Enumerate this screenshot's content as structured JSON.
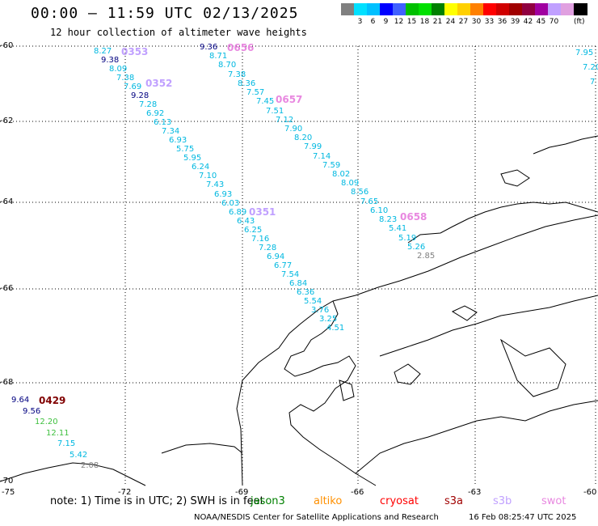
{
  "title": "00:00 – 11:59 UTC 02/13/2025",
  "subtitle": "12 hour collection of altimeter wave heights",
  "legend": {
    "colors": [
      "#808080",
      "#00e0ff",
      "#00c0ff",
      "#0000ff",
      "#4060ff",
      "#00c000",
      "#00e000",
      "#008000",
      "#ffff00",
      "#ffd000",
      "#ff8000",
      "#ff0000",
      "#d00000",
      "#a00000",
      "#900040",
      "#a000a0",
      "#c0a0ff",
      "#e0a0e0",
      "#000000"
    ],
    "labels": [
      "3",
      "6",
      "9",
      "12",
      "15",
      "18",
      "21",
      "24",
      "27",
      "30",
      "33",
      "36",
      "39",
      "42",
      "45",
      "70"
    ],
    "unit": "(ft)"
  },
  "map": {
    "lat_labels": [
      "-60",
      "-62",
      "-64",
      "-66",
      "-68",
      "-70"
    ],
    "lon_labels": [
      "-75",
      "-72",
      "-69",
      "-66",
      "-63",
      "-60"
    ],
    "colors": {
      "grid": "#000000",
      "coast": "#000000",
      "track_cyan": "#00b8e0",
      "track_navy": "#000080",
      "track_green": "#40c040",
      "track_gray": "#808080",
      "pass_lilac": "#c0a0ff",
      "pass_pink": "#e888e0",
      "pass_dark": "#800000"
    }
  },
  "tracks": {
    "west_values": [
      "8.27",
      "9.38",
      "8.09",
      "7.38",
      "7.69",
      "9.28",
      "7.28",
      "6.92",
      "6.13",
      "7.34",
      "6.93",
      "5.75",
      "5.95",
      "6.24",
      "7.10",
      "7.43",
      "6.93",
      "6.03",
      "6.89",
      "6.43",
      "6.25",
      "7.16",
      "7.28",
      "6.94",
      "6.77",
      "7.54",
      "6.84",
      "6.36",
      "5.54",
      "3.76",
      "3.25",
      "4.51"
    ],
    "east_values": [
      "9.36",
      "8.71",
      "8.70",
      "7.38",
      "8.36",
      "7.57",
      "7.45",
      "7.51",
      "7.12",
      "7.90",
      "8.20",
      "7.99",
      "7.14",
      "7.59",
      "8.02",
      "8.09",
      "8.56",
      "7.65",
      "6.10",
      "8.23",
      "5.41",
      "5.19",
      "5.26",
      "2.85"
    ],
    "sw_values": [
      "9.64",
      "9.56",
      "12.20",
      "12.11",
      "7.15",
      "5.42",
      "2.08"
    ],
    "ne_values": [
      "7.95",
      "7.20",
      "7"
    ],
    "passes": {
      "p0353": "0353",
      "p0352": "0352",
      "p0351": "0351",
      "p0656": "0656",
      "p0657": "0657",
      "p0658": "0658",
      "p0429": "0429"
    }
  },
  "note": "note: 1) Time is in UTC; 2) SWH is in feet",
  "satellites": {
    "jason": "jason3",
    "altika": "altiko",
    "cryosat": "cryosat",
    "s3a": "s3a",
    "s3b": "s3b",
    "swot": "swot"
  },
  "footer": {
    "org": "NOAA/NESDIS Center for Satellite Applications and Research",
    "timestamp": "16 Feb 08:25:47 UTC 2025"
  }
}
